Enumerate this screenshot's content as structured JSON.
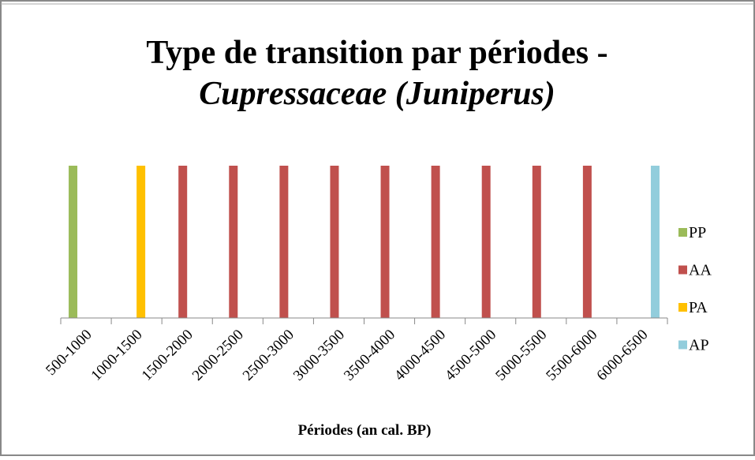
{
  "chart_data": {
    "type": "bar",
    "title": "Type de transition par périodes -",
    "subtitle": "Cupressaceae (Juniperus)",
    "x_label": "Périodes (an cal. BP)",
    "categories": [
      "500-1000",
      "1000-1500",
      "1500-2000",
      "2000-2500",
      "2500-3000",
      "3000-3500",
      "3500-4000",
      "4000-4500",
      "4500-5000",
      "5000-5500",
      "5500-6000",
      "6000-6500"
    ],
    "series": [
      {
        "name": "PP",
        "color": "#9bbb59",
        "values": [
          1,
          null,
          null,
          null,
          null,
          null,
          null,
          null,
          null,
          null,
          null,
          null
        ]
      },
      {
        "name": "AA",
        "color": "#c0504d",
        "values": [
          null,
          null,
          1,
          1,
          1,
          1,
          1,
          1,
          1,
          1,
          1,
          null
        ]
      },
      {
        "name": "PA",
        "color": "#ffc000",
        "values": [
          null,
          1,
          null,
          null,
          null,
          null,
          null,
          null,
          null,
          null,
          null,
          null
        ]
      },
      {
        "name": "AP",
        "color": "#92cddc",
        "values": [
          null,
          null,
          null,
          null,
          null,
          null,
          null,
          null,
          null,
          null,
          null,
          1
        ]
      }
    ],
    "ylim": [
      0,
      1
    ],
    "legend": "right"
  }
}
